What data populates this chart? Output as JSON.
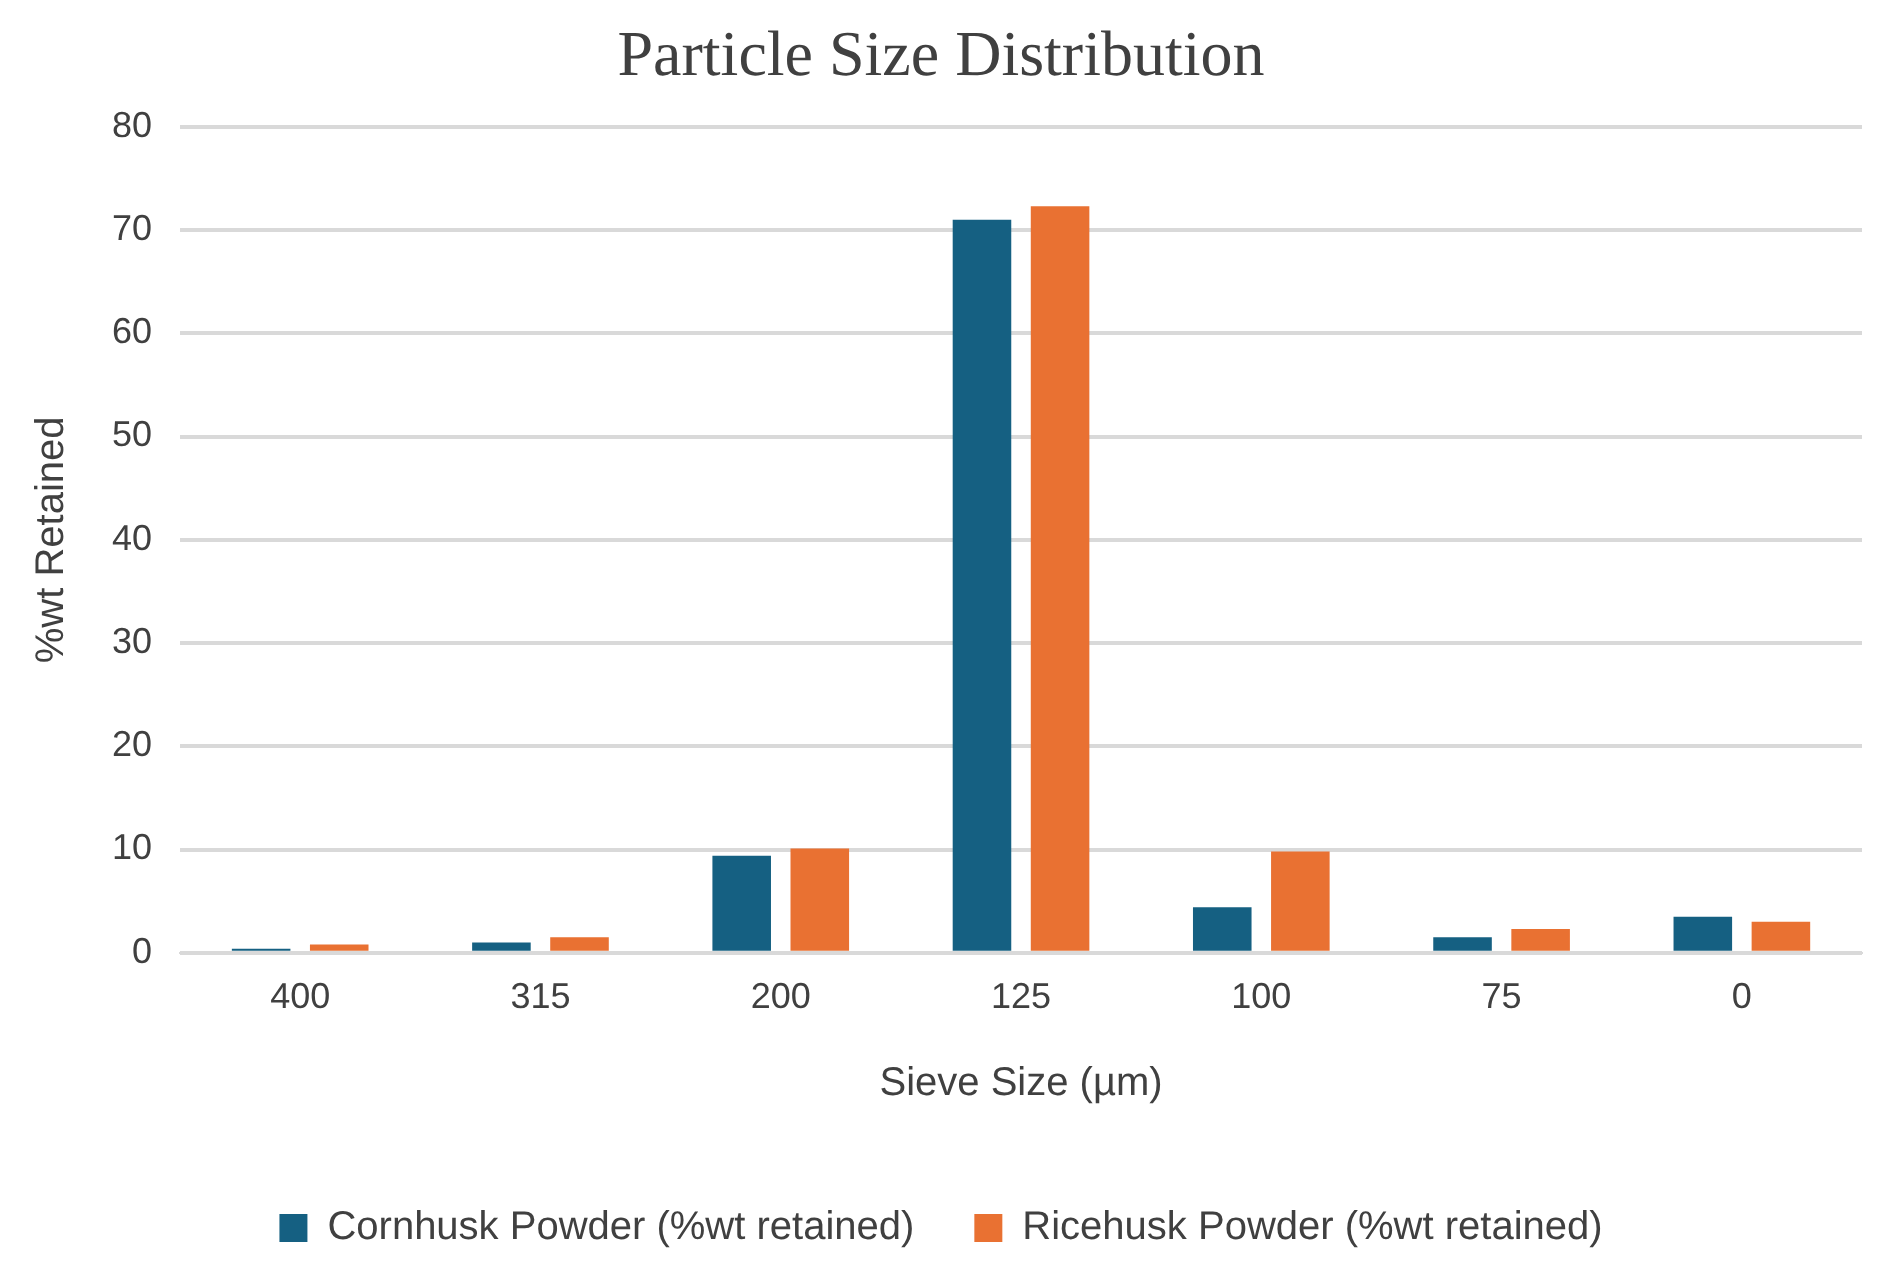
{
  "chart_data": {
    "type": "bar",
    "title": "Particle Size Distribution",
    "xlabel": "Sieve Size (µm)",
    "ylabel": "%wt Retained",
    "categories": [
      "400",
      "315",
      "200",
      "125",
      "100",
      "75",
      "0"
    ],
    "series": [
      {
        "name": "Cornhusk Powder (%wt retained)",
        "color": "#156082",
        "values": [
          0.2,
          1.0,
          9.4,
          71.0,
          4.4,
          1.5,
          3.5
        ]
      },
      {
        "name": "Ricehusk Powder (%wt retained)",
        "color": "#e97132",
        "values": [
          0.8,
          1.5,
          10.1,
          72.3,
          9.8,
          2.3,
          3.0
        ]
      }
    ],
    "ylim": [
      0,
      80
    ],
    "yticks": [
      0,
      10,
      20,
      30,
      40,
      50,
      60,
      70,
      80
    ],
    "grid": "y",
    "legend": "bottom"
  }
}
